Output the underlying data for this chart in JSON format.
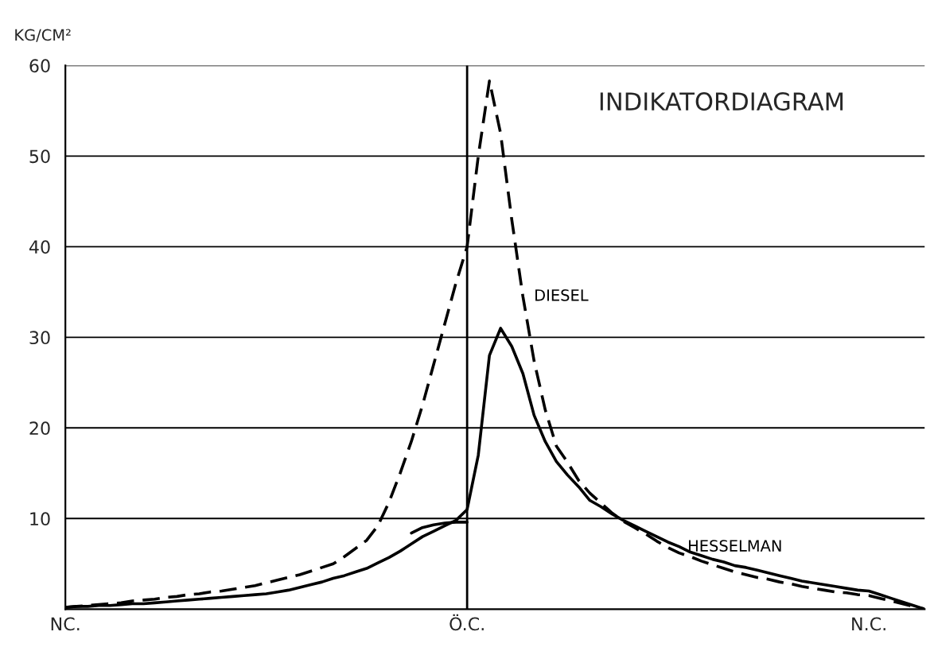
{
  "chart_data": {
    "type": "line",
    "title": "INDIKATORDIAGRAM",
    "ylabel": "KG/CM²",
    "categories": [
      "NC.",
      null,
      null,
      null,
      null,
      null,
      null,
      null,
      null,
      null,
      null,
      null,
      null,
      null,
      null,
      null,
      null,
      null,
      null,
      null,
      null,
      null,
      null,
      null,
      null,
      null,
      null,
      null,
      null,
      null,
      null,
      null,
      null,
      null,
      null,
      null,
      "Ö.C.",
      null,
      null,
      null,
      null,
      null,
      null,
      null,
      null,
      null,
      null,
      null,
      null,
      null,
      null,
      null,
      null,
      null,
      null,
      null,
      null,
      null,
      null,
      null,
      null,
      null,
      null,
      null,
      null,
      null,
      null,
      null,
      null,
      null,
      null,
      null,
      "N.C.",
      null,
      null,
      null,
      null,
      null
    ],
    "ylim": [
      0,
      60
    ],
    "yticks": [
      10,
      20,
      30,
      40,
      50,
      60
    ],
    "grid": "y",
    "ref_lines": [
      {
        "axis": "x",
        "value": "Ö.C.",
        "color": "#000000"
      }
    ],
    "series": [
      {
        "name": "DIESEL",
        "color": "#000000",
        "line_style": "dashed",
        "values": [
          0.2,
          0.3,
          0.4,
          0.5,
          0.6,
          0.7,
          0.9,
          1.0,
          1.1,
          1.3,
          1.4,
          1.6,
          1.7,
          1.9,
          2.0,
          2.2,
          2.4,
          2.6,
          2.9,
          3.2,
          3.5,
          3.8,
          4.2,
          4.6,
          5,
          5.8,
          6.7,
          7.6,
          9.2,
          11.8,
          15,
          18.5,
          22.5,
          27,
          31.5,
          36,
          40,
          50,
          58.3,
          52.5,
          43,
          34.5,
          27.4,
          22,
          18,
          16.2,
          14.2,
          12.8,
          11.7,
          10.6,
          9.7,
          9.0,
          8.3,
          7.5,
          6.8,
          6.2,
          5.8,
          5.3,
          4.9,
          4.5,
          4.1,
          3.8,
          3.5,
          3.3,
          3.0,
          2.8,
          2.5,
          2.3,
          2.1,
          1.9,
          1.8,
          1.6,
          1.5,
          1.2,
          0.9,
          0.6,
          0.3,
          0
        ]
      },
      {
        "name": "HESSELMAN",
        "color": "#000000",
        "line_style": "solid",
        "values": [
          0.2,
          0.3,
          0.3,
          0.4,
          0.4,
          0.5,
          0.6,
          0.6,
          0.7,
          0.8,
          0.9,
          1.0,
          1.1,
          1.2,
          1.3,
          1.4,
          1.5,
          1.6,
          1.7,
          1.9,
          2.1,
          2.4,
          2.7,
          3.0,
          3.4,
          3.7,
          4.1,
          4.5,
          5.1,
          5.7,
          6.4,
          7.2,
          8.0,
          8.6,
          9.2,
          9.8,
          11,
          17,
          28,
          31,
          29,
          26,
          21.4,
          18.5,
          16.3,
          14.8,
          13.5,
          12,
          11.3,
          10.5,
          9.8,
          9.2,
          8.6,
          8.0,
          7.4,
          6.9,
          6.3,
          5.9,
          5.5,
          5.2,
          4.8,
          4.6,
          4.3,
          4.0,
          3.7,
          3.4,
          3.1,
          2.9,
          2.7,
          2.5,
          2.3,
          2.1,
          2.0,
          1.6,
          1.2,
          0.8,
          0.4,
          0
        ]
      },
      {
        "color": "#000000",
        "line_style": "solid",
        "values": [
          null,
          null,
          null,
          null,
          null,
          null,
          null,
          null,
          null,
          null,
          null,
          null,
          null,
          null,
          null,
          null,
          null,
          null,
          null,
          null,
          null,
          null,
          null,
          null,
          null,
          null,
          null,
          null,
          null,
          null,
          null,
          8.4,
          9.0,
          9.3,
          9.5,
          9.6,
          9.6,
          null,
          null,
          null,
          null,
          null,
          null,
          null,
          null,
          null,
          null,
          null,
          null,
          null,
          null,
          null,
          null,
          null,
          null,
          null,
          null,
          null,
          null,
          null,
          null,
          null,
          null,
          null,
          null,
          null,
          null,
          null,
          null,
          null,
          null,
          null,
          null,
          null,
          null,
          null,
          null,
          null
        ]
      }
    ]
  }
}
